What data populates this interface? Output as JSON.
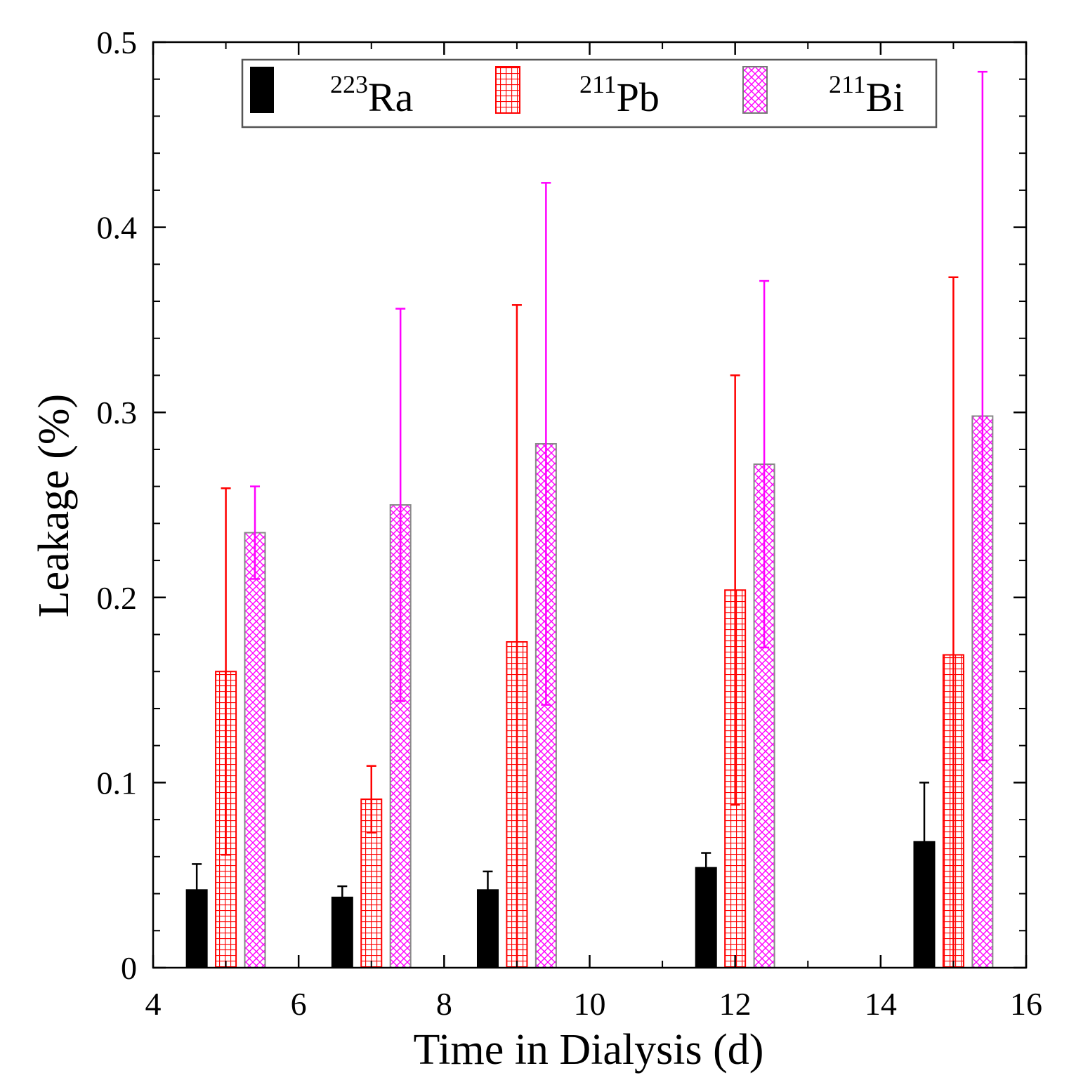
{
  "chart_data": {
    "type": "bar",
    "xlabel": "Time in Dialysis (d)",
    "ylabel": "Leakage (%)",
    "xlim": [
      4,
      16
    ],
    "ylim": [
      0,
      0.5
    ],
    "x_ticks": [
      4,
      6,
      8,
      10,
      12,
      14,
      16
    ],
    "y_ticks": [
      0,
      0.1,
      0.2,
      0.3,
      0.4,
      0.5
    ],
    "x_tick_labels": [
      "4",
      "6",
      "8",
      "10",
      "12",
      "14",
      "16"
    ],
    "y_tick_labels": [
      "0",
      "0.1",
      "0.2",
      "0.3",
      "0.4",
      "0.5"
    ],
    "x": [
      5,
      7,
      9,
      12,
      15
    ],
    "legend_position": "top",
    "series": [
      {
        "name": "223Ra",
        "mass_number": "223",
        "element": "Ra",
        "color": "#000000",
        "pattern": "solid",
        "values": [
          0.042,
          0.038,
          0.042,
          0.054,
          0.068
        ],
        "error_upper": [
          0.056,
          0.044,
          0.052,
          0.062,
          0.1
        ],
        "error_lower": null
      },
      {
        "name": "211Pb",
        "mass_number": "211",
        "element": "Pb",
        "color": "#ff0000",
        "pattern": "grid",
        "values": [
          0.16,
          0.091,
          0.176,
          0.204,
          0.169
        ],
        "error_upper": [
          0.259,
          0.109,
          0.358,
          0.32,
          0.373
        ],
        "error_lower": [
          0.061,
          0.073,
          0.0,
          0.088,
          0.0
        ]
      },
      {
        "name": "211Bi",
        "mass_number": "211",
        "element": "Bi",
        "color": "#ff00ff",
        "pattern": "crosshatch",
        "values": [
          0.235,
          0.25,
          0.283,
          0.272,
          0.298
        ],
        "error_upper": [
          0.26,
          0.356,
          0.424,
          0.371,
          0.484
        ],
        "error_lower": [
          0.21,
          0.144,
          0.142,
          0.173,
          0.112
        ]
      }
    ]
  }
}
